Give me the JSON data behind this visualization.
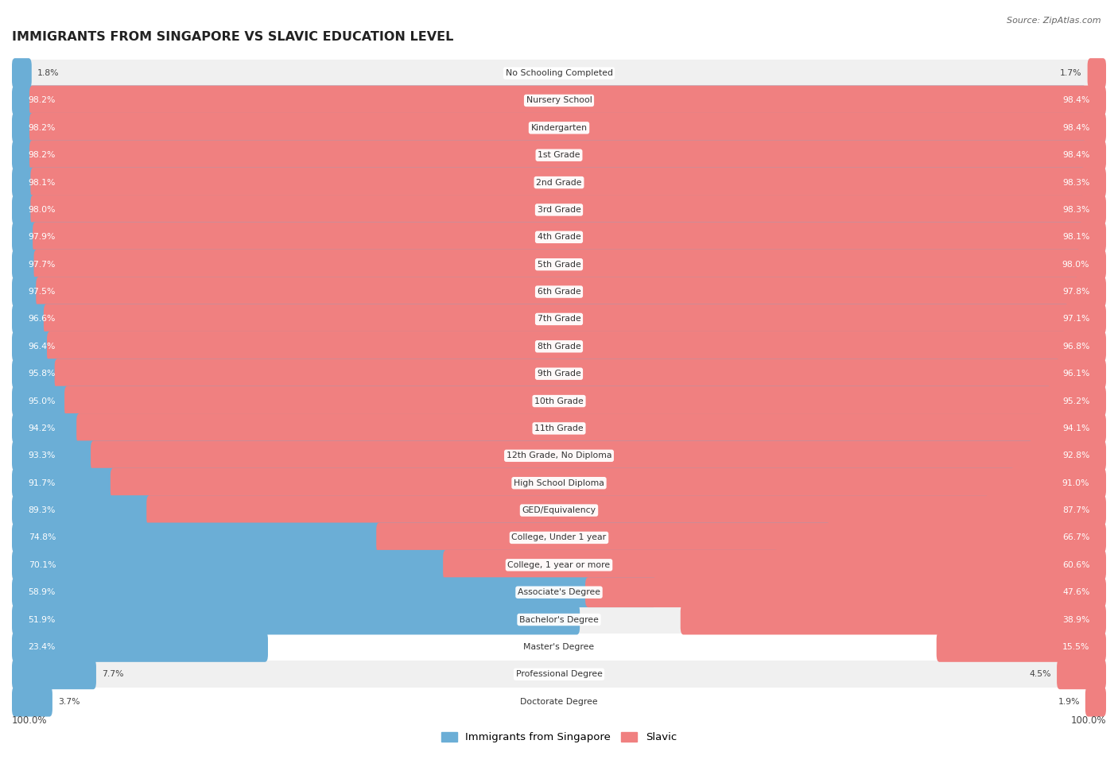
{
  "title": "IMMIGRANTS FROM SINGAPORE VS SLAVIC EDUCATION LEVEL",
  "source": "Source: ZipAtlas.com",
  "categories": [
    "No Schooling Completed",
    "Nursery School",
    "Kindergarten",
    "1st Grade",
    "2nd Grade",
    "3rd Grade",
    "4th Grade",
    "5th Grade",
    "6th Grade",
    "7th Grade",
    "8th Grade",
    "9th Grade",
    "10th Grade",
    "11th Grade",
    "12th Grade, No Diploma",
    "High School Diploma",
    "GED/Equivalency",
    "College, Under 1 year",
    "College, 1 year or more",
    "Associate's Degree",
    "Bachelor's Degree",
    "Master's Degree",
    "Professional Degree",
    "Doctorate Degree"
  ],
  "singapore_values": [
    1.8,
    98.2,
    98.2,
    98.2,
    98.1,
    98.0,
    97.9,
    97.7,
    97.5,
    96.6,
    96.4,
    95.8,
    95.0,
    94.2,
    93.3,
    91.7,
    89.3,
    74.8,
    70.1,
    58.9,
    51.9,
    23.4,
    7.7,
    3.7
  ],
  "slavic_values": [
    1.7,
    98.4,
    98.4,
    98.4,
    98.3,
    98.3,
    98.1,
    98.0,
    97.8,
    97.1,
    96.8,
    96.1,
    95.2,
    94.1,
    92.8,
    91.0,
    87.7,
    66.7,
    60.6,
    47.6,
    38.9,
    15.5,
    4.5,
    1.9
  ],
  "singapore_color": "#6baed6",
  "slavic_color": "#f08080",
  "bar_height": 0.55,
  "background_color": "#ffffff",
  "row_color_odd": "#f0f0f0",
  "row_color_even": "#ffffff",
  "label_inside_color": "#ffffff",
  "label_outside_color": "#444444",
  "xlabel": "100.0%",
  "legend_singapore": "Immigrants from Singapore",
  "legend_slavic": "Slavic",
  "inside_threshold": 10.0
}
